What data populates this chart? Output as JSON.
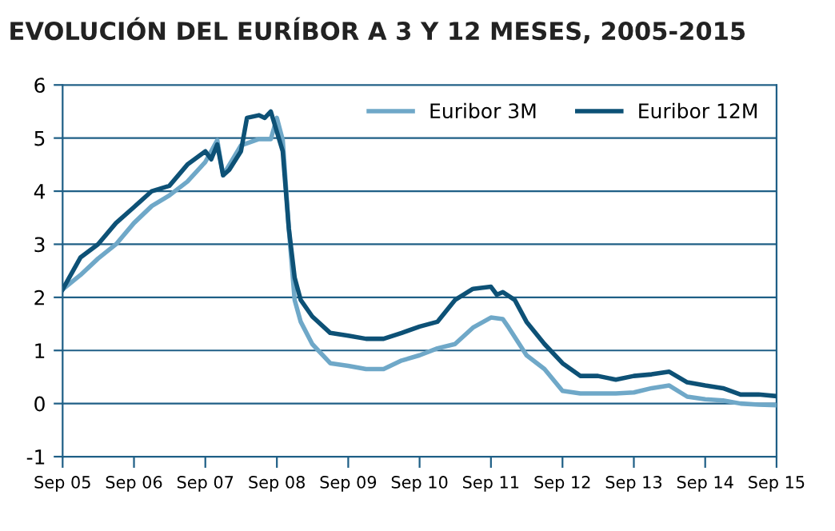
{
  "chart_data": {
    "type": "line",
    "title": "EVOLUCIÓN DEL EURÍBOR A 3 Y 12 MESES, 2005-2015",
    "series": [
      {
        "name": "Euribor 3M",
        "color": "#6fa8c8",
        "x": [
          "2005-09",
          "2005-12",
          "2006-03",
          "2006-06",
          "2006-09",
          "2006-12",
          "2007-03",
          "2007-06",
          "2007-09",
          "2007-11",
          "2007-12",
          "2008-03",
          "2008-06",
          "2008-08",
          "2008-09",
          "2008-10",
          "2008-11",
          "2008-12",
          "2009-01",
          "2009-03",
          "2009-06",
          "2009-09",
          "2009-12",
          "2010-03",
          "2010-06",
          "2010-09",
          "2010-12",
          "2011-03",
          "2011-06",
          "2011-09",
          "2011-11",
          "2011-12",
          "2012-03",
          "2012-06",
          "2012-09",
          "2012-12",
          "2013-03",
          "2013-06",
          "2013-09",
          "2013-12",
          "2014-03",
          "2014-06",
          "2014-09",
          "2014-12",
          "2015-03",
          "2015-06",
          "2015-09"
        ],
        "values": [
          2.15,
          2.42,
          2.73,
          3.0,
          3.4,
          3.72,
          3.92,
          4.18,
          4.55,
          4.96,
          4.3,
          4.86,
          4.98,
          4.98,
          5.38,
          4.96,
          3.3,
          1.95,
          1.54,
          1.12,
          0.76,
          0.71,
          0.65,
          0.65,
          0.81,
          0.91,
          1.04,
          1.12,
          1.43,
          1.62,
          1.59,
          1.43,
          0.91,
          0.65,
          0.24,
          0.19,
          0.19,
          0.19,
          0.21,
          0.29,
          0.34,
          0.13,
          0.08,
          0.06,
          0.0,
          -0.02,
          -0.03
        ]
      },
      {
        "name": "Euribor 12M",
        "color": "#0d5176",
        "x": [
          "2005-09",
          "2005-12",
          "2006-03",
          "2006-06",
          "2006-09",
          "2006-12",
          "2007-03",
          "2007-06",
          "2007-09",
          "2007-10",
          "2007-11",
          "2007-12",
          "2008-01",
          "2008-03",
          "2008-04",
          "2008-06",
          "2008-07",
          "2008-08",
          "2008-10",
          "2008-11",
          "2008-12",
          "2009-01",
          "2009-03",
          "2009-06",
          "2009-09",
          "2009-12",
          "2010-03",
          "2010-06",
          "2010-09",
          "2010-12",
          "2011-03",
          "2011-06",
          "2011-09",
          "2011-10",
          "2011-11",
          "2012-01",
          "2012-03",
          "2012-06",
          "2012-09",
          "2012-12",
          "2013-03",
          "2013-06",
          "2013-09",
          "2013-12",
          "2014-03",
          "2014-06",
          "2014-09",
          "2014-12",
          "2015-03",
          "2015-06",
          "2015-09"
        ],
        "values": [
          2.15,
          2.75,
          3.0,
          3.4,
          3.7,
          4.0,
          4.1,
          4.5,
          4.75,
          4.6,
          4.88,
          4.3,
          4.4,
          4.75,
          5.38,
          5.43,
          5.38,
          5.5,
          4.75,
          3.3,
          2.37,
          1.95,
          1.64,
          1.33,
          1.28,
          1.22,
          1.22,
          1.33,
          1.45,
          1.54,
          1.95,
          2.16,
          2.2,
          2.05,
          2.1,
          1.95,
          1.54,
          1.12,
          0.76,
          0.52,
          0.52,
          0.45,
          0.52,
          0.55,
          0.6,
          0.4,
          0.34,
          0.29,
          0.17,
          0.17,
          0.14
        ]
      }
    ],
    "xlim": [
      "2005-09",
      "2015-09"
    ],
    "xticks": [
      {
        "value": "2005-09",
        "label": "Sep 05"
      },
      {
        "value": "2006-09",
        "label": "Sep 06"
      },
      {
        "value": "2007-09",
        "label": "Sep 07"
      },
      {
        "value": "2008-09",
        "label": "Sep 08"
      },
      {
        "value": "2009-09",
        "label": "Sep 09"
      },
      {
        "value": "2010-09",
        "label": "Sep 10"
      },
      {
        "value": "2011-09",
        "label": "Sep 11"
      },
      {
        "value": "2012-09",
        "label": "Sep 12"
      },
      {
        "value": "2013-09",
        "label": "Sep 13"
      },
      {
        "value": "2014-09",
        "label": "Sep 14"
      },
      {
        "value": "2015-09",
        "label": "Sep 15"
      }
    ],
    "ylim": [
      -1,
      6
    ],
    "yticks": [
      -1,
      0,
      1,
      2,
      3,
      4,
      5,
      6
    ],
    "grid": "y",
    "legend": "top right",
    "marker": "none",
    "line_style": "solid"
  }
}
